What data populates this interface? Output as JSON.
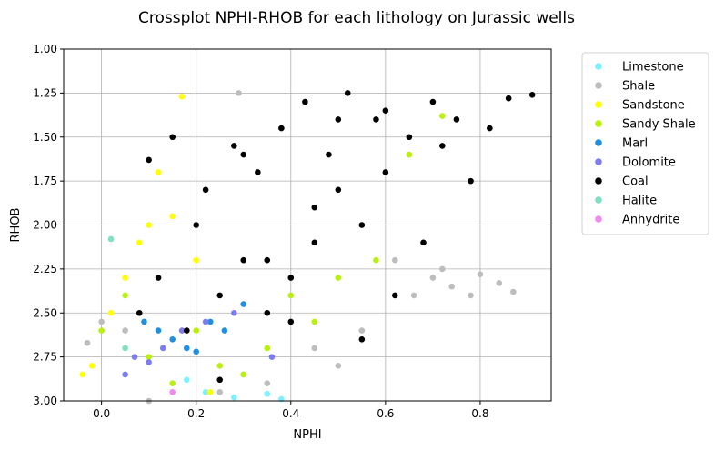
{
  "chart_data": {
    "type": "scatter",
    "title": "Crossplot NPHI-RHOB for each lithology on Jurassic wells",
    "xlabel": "NPHI",
    "ylabel": "RHOB",
    "xlim": [
      -0.08,
      0.95
    ],
    "ylim": [
      3.0,
      1.0
    ],
    "y_inverted": true,
    "xticks": [
      0.0,
      0.2,
      0.4,
      0.6,
      0.8
    ],
    "yticks": [
      1.0,
      1.25,
      1.5,
      1.75,
      2.0,
      2.25,
      2.5,
      2.75,
      3.0
    ],
    "grid": true,
    "legend_position": "outside-right",
    "series": [
      {
        "name": "Limestone",
        "color": "#7ff0ff",
        "x": [
          0.18,
          0.22,
          0.28,
          0.35,
          0.38
        ],
        "y": [
          2.88,
          2.95,
          2.98,
          2.96,
          2.99
        ]
      },
      {
        "name": "Shale",
        "color": "#bdbdbd",
        "x": [
          -0.03,
          0.0,
          0.05,
          0.1,
          0.25,
          0.3,
          0.45,
          0.55,
          0.62,
          0.66,
          0.7,
          0.72,
          0.74,
          0.78,
          0.8,
          0.84,
          0.87,
          0.5,
          0.35,
          0.29
        ],
        "y": [
          2.67,
          2.55,
          2.6,
          3.0,
          2.95,
          2.85,
          2.7,
          2.6,
          2.2,
          2.4,
          2.3,
          2.25,
          2.35,
          2.4,
          2.28,
          2.33,
          2.38,
          2.8,
          2.9,
          1.25
        ]
      },
      {
        "name": "Sandstone",
        "color": "#ffff00",
        "x": [
          -0.04,
          -0.02,
          0.02,
          0.05,
          0.08,
          0.1,
          0.12,
          0.15,
          0.17,
          0.2,
          0.23
        ],
        "y": [
          2.85,
          2.8,
          2.5,
          2.3,
          2.1,
          2.0,
          1.7,
          1.95,
          1.27,
          2.2,
          2.95
        ]
      },
      {
        "name": "Sandy Shale",
        "color": "#b9f00c",
        "x": [
          0.0,
          0.05,
          0.1,
          0.15,
          0.2,
          0.25,
          0.3,
          0.35,
          0.4,
          0.45,
          0.5,
          0.58,
          0.65,
          0.72
        ],
        "y": [
          2.6,
          2.4,
          2.75,
          2.9,
          2.6,
          2.8,
          2.85,
          2.7,
          2.4,
          2.55,
          2.3,
          2.2,
          1.6,
          1.38
        ]
      },
      {
        "name": "Marl",
        "color": "#1f8fe0",
        "x": [
          0.09,
          0.12,
          0.15,
          0.18,
          0.2,
          0.23,
          0.26,
          0.3
        ],
        "y": [
          2.55,
          2.6,
          2.65,
          2.7,
          2.72,
          2.55,
          2.6,
          2.45
        ]
      },
      {
        "name": "Dolomite",
        "color": "#7d7df0",
        "x": [
          0.05,
          0.07,
          0.1,
          0.13,
          0.17,
          0.22,
          0.28,
          0.36
        ],
        "y": [
          2.85,
          2.75,
          2.78,
          2.7,
          2.6,
          2.55,
          2.5,
          2.75
        ]
      },
      {
        "name": "Coal",
        "color": "#000000",
        "x": [
          0.08,
          0.1,
          0.12,
          0.15,
          0.18,
          0.2,
          0.22,
          0.25,
          0.28,
          0.3,
          0.33,
          0.35,
          0.38,
          0.4,
          0.43,
          0.45,
          0.48,
          0.5,
          0.52,
          0.55,
          0.58,
          0.6,
          0.62,
          0.65,
          0.68,
          0.7,
          0.72,
          0.75,
          0.78,
          0.82,
          0.86,
          0.91,
          0.25,
          0.35,
          0.45,
          0.55,
          0.3,
          0.4,
          0.5,
          0.6
        ],
        "y": [
          2.5,
          1.63,
          2.3,
          1.5,
          2.6,
          2.0,
          1.8,
          2.4,
          1.55,
          2.2,
          1.7,
          2.5,
          1.45,
          2.3,
          1.3,
          2.1,
          1.6,
          1.8,
          1.25,
          2.0,
          1.4,
          1.7,
          2.4,
          1.5,
          2.1,
          1.3,
          1.55,
          1.4,
          1.75,
          1.45,
          1.28,
          1.26,
          2.88,
          2.2,
          1.9,
          2.65,
          1.6,
          2.55,
          1.4,
          1.35
        ]
      },
      {
        "name": "Halite",
        "color": "#7fe0c0",
        "x": [
          0.02,
          0.05
        ],
        "y": [
          2.08,
          2.7
        ]
      },
      {
        "name": "Anhydrite",
        "color": "#f08af0",
        "x": [
          0.15
        ],
        "y": [
          2.95
        ]
      }
    ]
  }
}
